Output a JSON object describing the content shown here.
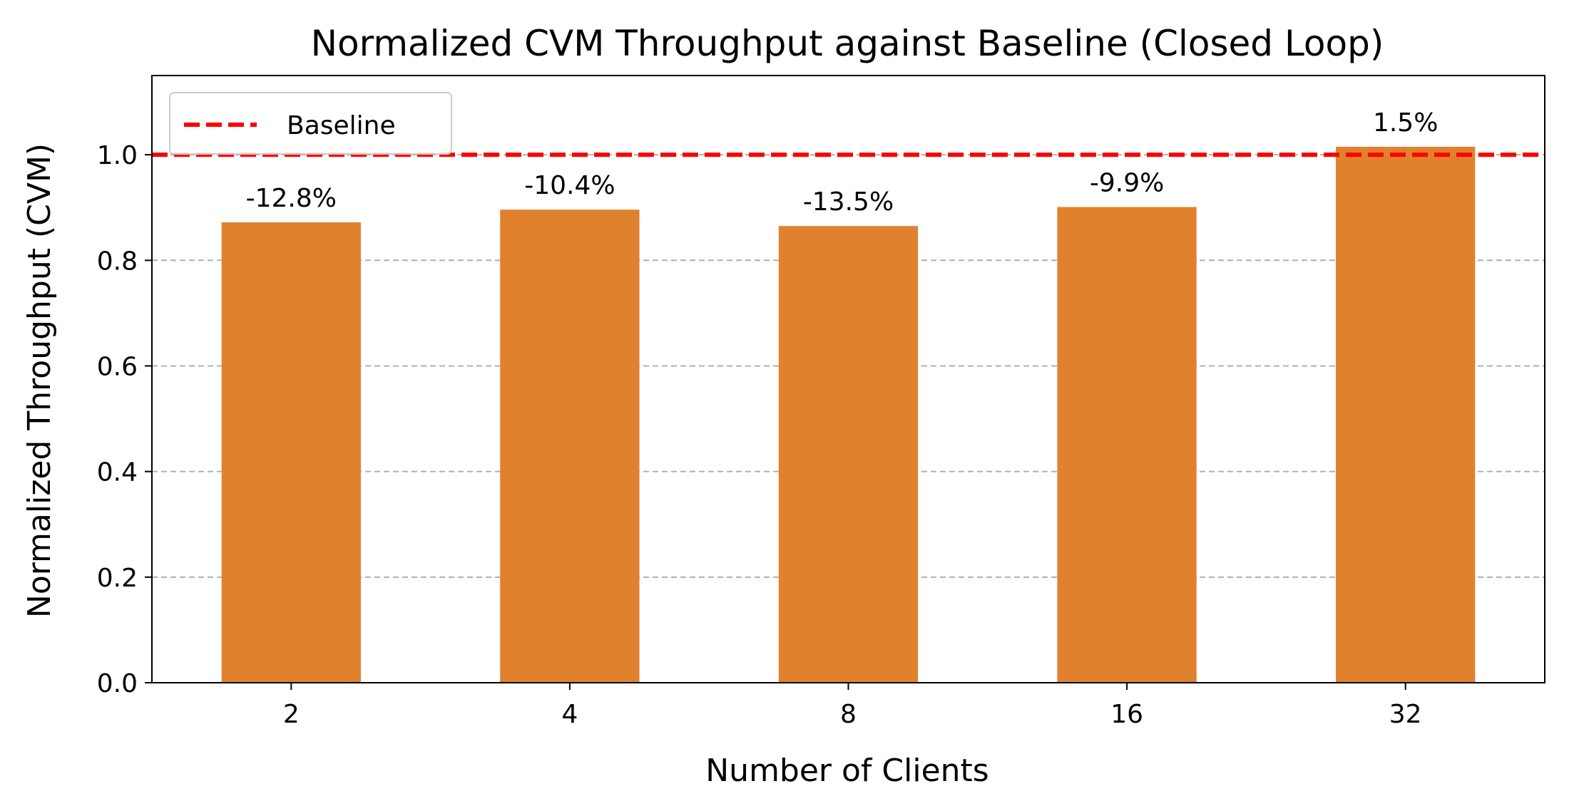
{
  "chart_data": {
    "type": "bar",
    "title": "Normalized CVM Throughput against Baseline (Closed Loop)",
    "xlabel": "Number of Clients",
    "ylabel": "Normalized Throughput (CVM)",
    "categories": [
      "2",
      "4",
      "8",
      "16",
      "32"
    ],
    "values": [
      0.872,
      0.896,
      0.865,
      0.901,
      1.015
    ],
    "data_labels": [
      "-12.8%",
      "-10.4%",
      "-13.5%",
      "-9.9%",
      "1.5%"
    ],
    "ylim": [
      0,
      1.15
    ],
    "yticks": [
      0.0,
      0.2,
      0.4,
      0.6,
      0.8,
      1.0
    ],
    "ytick_labels": [
      "0.0",
      "0.2",
      "0.4",
      "0.6",
      "0.8",
      "1.0"
    ],
    "grid": "horizontal dashed",
    "baseline": {
      "label": "Baseline",
      "value": 1.0,
      "style": "dashed"
    },
    "legend": {
      "position": "top-left",
      "entries": [
        "Baseline"
      ]
    },
    "colors": {
      "bar": "#e0812e",
      "baseline": "#ff0000",
      "grid": "#b0b0b0",
      "axes": "#000000"
    }
  }
}
